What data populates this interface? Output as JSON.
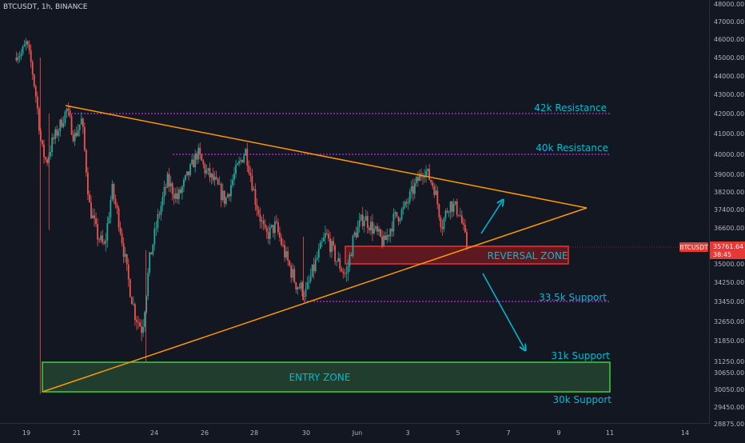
{
  "header": {
    "symbol": "BTCUSDT, 1h, BINANCE"
  },
  "colors": {
    "background": "#131722",
    "up": "#26a69a",
    "down": "#ef5350",
    "trendline": "#ff9800",
    "level": "#e040fb",
    "label": "#00bcd4",
    "entry_zone": "#4caf50",
    "reversal_zone": "#e53935",
    "arrow": "#00bcd4",
    "price_tag": "#e53935"
  },
  "chart_data": {
    "type": "candlestick",
    "title": "",
    "xlabel": "",
    "ylabel": "",
    "x_ticks": [
      "19",
      "21",
      "24",
      "26",
      "28",
      "30",
      "Jun",
      "3",
      "5",
      "7",
      "9",
      "11",
      "14"
    ],
    "y_ticks": [
      "48000.00",
      "47000.00",
      "46000.00",
      "45000.00",
      "44000.00",
      "43000.00",
      "42000.00",
      "41000.00",
      "40000.00",
      "39000.00",
      "38200.00",
      "37400.00",
      "36600.00",
      "35800.00",
      "35000.00",
      "34250.00",
      "33450.00",
      "32650.00",
      "31850.00",
      "31250.00",
      "30650.00",
      "30050.00",
      "29450.00",
      "28875.00"
    ],
    "ylim": [
      28875,
      48000
    ],
    "grid": false,
    "current_price": {
      "symbol": "BTCUSDT",
      "price": "35761.64",
      "countdown": "38:45"
    },
    "levels": [
      {
        "label": "42k Resistance",
        "price": 42000
      },
      {
        "label": "40k Resistance",
        "price": 40000
      },
      {
        "label": "33.5k Support",
        "price": 33450
      }
    ],
    "annotations": {
      "support_31k": "31k Support",
      "support_30k": "30k Support",
      "entry_zone": "ENTRY ZONE",
      "reversal_zone": "REVERSAL ZONE"
    },
    "keypoints": [
      {
        "day": 18.8,
        "price": 45200
      },
      {
        "day": 19.0,
        "price": 45800
      },
      {
        "day": 19.2,
        "price": 44600
      },
      {
        "day": 19.4,
        "price": 42700
      },
      {
        "day": 19.6,
        "price": 40300
      },
      {
        "day": 19.8,
        "price": 39600
      },
      {
        "day": 20.0,
        "price": 40500
      },
      {
        "day": 20.3,
        "price": 41300
      },
      {
        "day": 20.6,
        "price": 42200
      },
      {
        "day": 20.9,
        "price": 40800
      },
      {
        "day": 21.2,
        "price": 41700
      },
      {
        "day": 21.5,
        "price": 37600
      },
      {
        "day": 21.8,
        "price": 36300
      },
      {
        "day": 22.1,
        "price": 35700
      },
      {
        "day": 22.4,
        "price": 38300
      },
      {
        "day": 22.7,
        "price": 36800
      },
      {
        "day": 23.0,
        "price": 34600
      },
      {
        "day": 23.3,
        "price": 33000
      },
      {
        "day": 23.6,
        "price": 32300
      },
      {
        "day": 23.9,
        "price": 35200
      },
      {
        "day": 24.2,
        "price": 36900
      },
      {
        "day": 24.6,
        "price": 38700
      },
      {
        "day": 25.0,
        "price": 37900
      },
      {
        "day": 25.4,
        "price": 38900
      },
      {
        "day": 25.8,
        "price": 40100
      },
      {
        "day": 26.1,
        "price": 39200
      },
      {
        "day": 26.5,
        "price": 38600
      },
      {
        "day": 26.9,
        "price": 37800
      },
      {
        "day": 27.3,
        "price": 39100
      },
      {
        "day": 27.7,
        "price": 40200
      },
      {
        "day": 28.1,
        "price": 37800
      },
      {
        "day": 28.5,
        "price": 36200
      },
      {
        "day": 28.9,
        "price": 36700
      },
      {
        "day": 29.3,
        "price": 35300
      },
      {
        "day": 29.7,
        "price": 34200
      },
      {
        "day": 30.1,
        "price": 33800
      },
      {
        "day": 30.5,
        "price": 35100
      },
      {
        "day": 30.9,
        "price": 36300
      },
      {
        "day": 31.3,
        "price": 35200
      },
      {
        "day": 31.7,
        "price": 34500
      },
      {
        "day": 32.0,
        "price": 36200
      },
      {
        "day": 32.4,
        "price": 37100
      },
      {
        "day": 32.8,
        "price": 36500
      },
      {
        "day": 33.2,
        "price": 35900
      },
      {
        "day": 33.6,
        "price": 37000
      },
      {
        "day": 34.0,
        "price": 37400
      },
      {
        "day": 34.4,
        "price": 38400
      },
      {
        "day": 34.8,
        "price": 39300
      },
      {
        "day": 35.2,
        "price": 38400
      },
      {
        "day": 35.5,
        "price": 36700
      },
      {
        "day": 35.8,
        "price": 37700
      },
      {
        "day": 36.2,
        "price": 37300
      },
      {
        "day": 36.5,
        "price": 35700
      }
    ]
  }
}
